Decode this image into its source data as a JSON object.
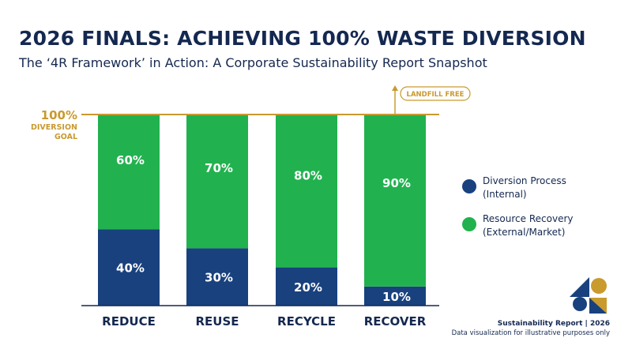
{
  "title": "2026 FINALS: ACHIEVING 100% WASTE DIVERSION",
  "subtitle": "The ‘4R Framework’ in Action: A Corporate Sustainability Report Snapshot",
  "goal": {
    "value": "100%",
    "label_line1": "DIVERSION",
    "label_line2": "GOAL"
  },
  "badge": "LANDFILL FREE",
  "colors": {
    "internal": "#19417e",
    "external": "#21b24f",
    "accent": "#c99a2e",
    "text": "#142850"
  },
  "legend": [
    {
      "line1": "Diversion Process",
      "line2": "(Internal)"
    },
    {
      "line1": "Resource Recovery",
      "line2": "(External/Market)"
    }
  ],
  "footer": {
    "title": "Sustainability Report | 2026",
    "note": "Data visualization for illustrative purposes only"
  },
  "chart_data": {
    "type": "bar",
    "stacked": true,
    "categories": [
      "REDUCE",
      "REUSE",
      "RECYCLE",
      "RECOVER"
    ],
    "series": [
      {
        "name": "Diversion Process (Internal)",
        "values": [
          40,
          30,
          20,
          10
        ],
        "labels": [
          "40%",
          "30%",
          "20%",
          "10%"
        ]
      },
      {
        "name": "Resource Recovery (External/Market)",
        "values": [
          60,
          70,
          80,
          90
        ],
        "labels": [
          "60%",
          "70%",
          "80%",
          "90%"
        ]
      }
    ],
    "ylim": [
      0,
      100
    ],
    "reference_line": 100,
    "grid": false,
    "legend_position": "right"
  }
}
